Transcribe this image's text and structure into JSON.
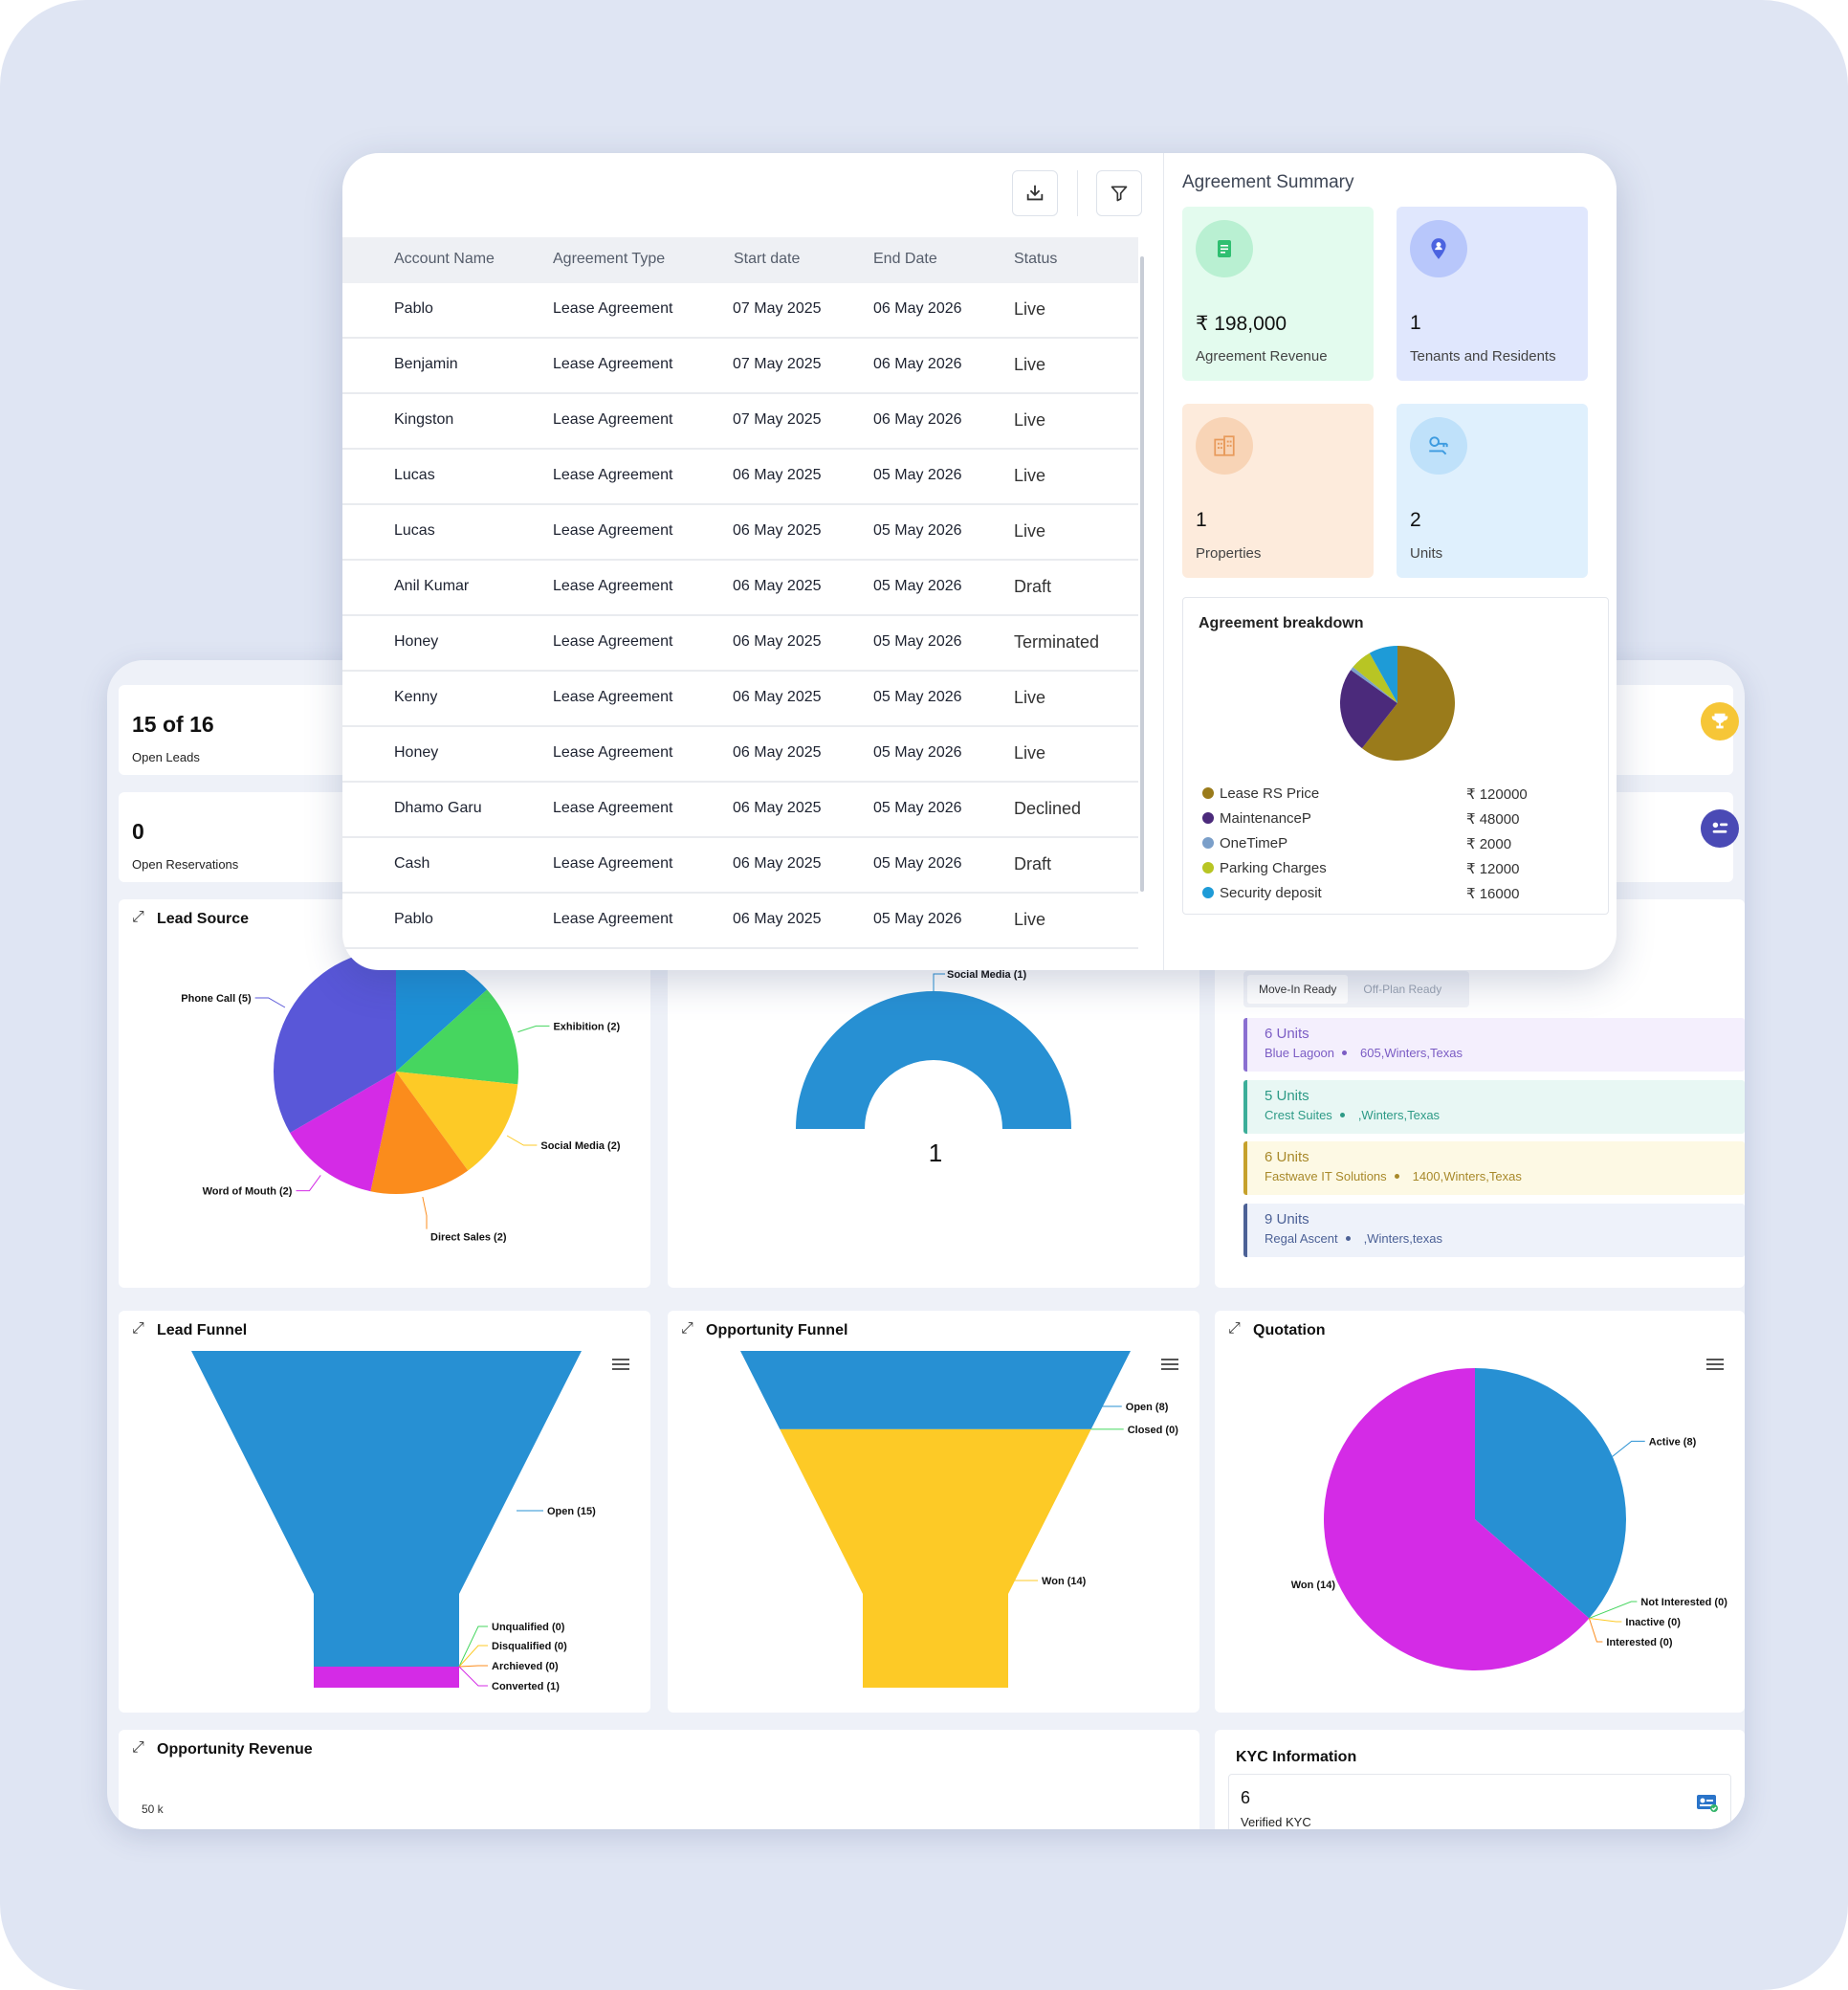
{
  "table": {
    "headers": [
      "Account Name",
      "Agreement Type",
      "Start date",
      "End Date",
      "Status"
    ],
    "rows": [
      [
        "Pablo",
        "Lease Agreement",
        "07 May 2025",
        "06 May 2026",
        "Live"
      ],
      [
        "Benjamin",
        "Lease Agreement",
        "07 May 2025",
        "06 May 2026",
        "Live"
      ],
      [
        "Kingston",
        "Lease Agreement",
        "07 May 2025",
        "06 May 2026",
        "Live"
      ],
      [
        "Lucas",
        "Lease Agreement",
        "06 May 2025",
        "05 May 2026",
        "Live"
      ],
      [
        "Lucas",
        "Lease Agreement",
        "06 May 2025",
        "05 May 2026",
        "Live"
      ],
      [
        "Anil Kumar",
        "Lease Agreement",
        "06 May 2025",
        "05 May 2026",
        "Draft"
      ],
      [
        "Honey",
        "Lease Agreement",
        "06 May 2025",
        "05 May 2026",
        "Terminated"
      ],
      [
        "Kenny",
        "Lease Agreement",
        "06 May 2025",
        "05 May 2026",
        "Live"
      ],
      [
        "Honey",
        "Lease Agreement",
        "06 May 2025",
        "05 May 2026",
        "Live"
      ],
      [
        "Dhamo Garu",
        "Lease Agreement",
        "06 May 2025",
        "05 May 2026",
        "Declined"
      ],
      [
        "Cash",
        "Lease Agreement",
        "06 May 2025",
        "05 May 2026",
        "Draft"
      ],
      [
        "Pablo",
        "Lease Agreement",
        "06 May 2025",
        "05 May 2026",
        "Live"
      ]
    ]
  },
  "toolbar": {
    "download_icon": "download-icon",
    "filter_icon": "filter-icon"
  },
  "summary": {
    "title": "Agreement Summary",
    "cards": [
      {
        "value": "₹ 198,000",
        "label": "Agreement Revenue",
        "bg": "#e3fbee",
        "icon_bg": "#b9f0d2",
        "icon_color": "#2fbf71",
        "icon": "document-icon"
      },
      {
        "value": "1",
        "label": "Tenants and Residents",
        "bg": "#e0e7fd",
        "icon_bg": "#b8c7fb",
        "icon_color": "#4b63e0",
        "icon": "user-pin-icon"
      },
      {
        "value": "1",
        "label": "Properties",
        "bg": "#fdebdc",
        "icon_bg": "#f8d4b6",
        "icon_color": "#e89a5b",
        "icon": "building-icon"
      },
      {
        "value": "2",
        "label": "Units",
        "bg": "#dff0fd",
        "icon_bg": "#bfe1fa",
        "icon_color": "#3d9be0",
        "icon": "key-icon"
      }
    ],
    "breakdown": {
      "title": "Agreement breakdown",
      "items": [
        {
          "name": "Lease RS Price",
          "value": "₹ 120000",
          "color": "#9a7b1b"
        },
        {
          "name": "MaintenanceP",
          "value": "₹ 48000",
          "color": "#4b2a7b"
        },
        {
          "name": "OneTimeP",
          "value": "₹ 2000",
          "color": "#7b9fc9"
        },
        {
          "name": "Parking Charges",
          "value": "₹ 12000",
          "color": "#b8c524"
        },
        {
          "name": "Security deposit",
          "value": "₹ 16000",
          "color": "#1e9bd7"
        }
      ]
    }
  },
  "stats": {
    "open_leads": {
      "value": "15 of 16",
      "label": "Open Leads"
    },
    "open_reservations": {
      "value": "0",
      "label": "Open Reservations"
    }
  },
  "lead_source": {
    "title": "Lead Source",
    "chart_data": {
      "type": "pie",
      "slices": [
        {
          "label": "Social Media (2)",
          "value": 2,
          "color": "#1e90d6"
        },
        {
          "label": "Exhibition (2)",
          "value": 2,
          "color": "#46d65f"
        },
        {
          "label": "Social Media (2)",
          "value": 2,
          "color": "#fdca26"
        },
        {
          "label": "Direct Sales (2)",
          "value": 2,
          "color": "#fb8c1c"
        },
        {
          "label": "Word of Mouth (2)",
          "value": 2,
          "color": "#d42be6"
        },
        {
          "label": "Phone Call (5)",
          "value": 5,
          "color": "#5957d8"
        }
      ]
    }
  },
  "source_gauge": {
    "chart_data": {
      "type": "pie",
      "slices": [
        {
          "label": "Social Media (1)",
          "value": 1,
          "color": "#2790d3"
        }
      ],
      "center_value": "1"
    }
  },
  "properties": {
    "tabs": [
      "Move-In Ready",
      "Off-Plan Ready"
    ],
    "items": [
      {
        "units": "6 Units",
        "name": "Blue Lagoon",
        "address": "605,Winters,Texas",
        "bg": "#f4effd",
        "border": "#8a6fd1",
        "color": "#7b5cc4"
      },
      {
        "units": "5 Units",
        "name": "Crest Suites",
        "address": ",Winters,Texas",
        "bg": "#e8f7f4",
        "border": "#3cae99",
        "color": "#2d9a86"
      },
      {
        "units": "6 Units",
        "name": "Fastwave IT Solutions",
        "address": "1400,Winters,Texas",
        "bg": "#fdf9e4",
        "border": "#c6a12b",
        "color": "#a8892a"
      },
      {
        "units": "9 Units",
        "name": "Regal Ascent",
        "address": ",Winters,texas",
        "bg": "#eef2fa",
        "border": "#4c6196",
        "color": "#4c6196"
      }
    ]
  },
  "lead_funnel": {
    "title": "Lead Funnel",
    "chart_data": {
      "type": "funnel",
      "stages": [
        {
          "label": "Open (15)",
          "value": 15,
          "color": "#2790d3"
        },
        {
          "label": "Unqualified (0)",
          "value": 0,
          "color": "#46d65f"
        },
        {
          "label": "Disqualified (0)",
          "value": 0,
          "color": "#fdca26"
        },
        {
          "label": "Archieved (0)",
          "value": 0,
          "color": "#fb8c1c"
        },
        {
          "label": "Converted (1)",
          "value": 1,
          "color": "#d42be6"
        }
      ]
    }
  },
  "opportunity_funnel": {
    "title": "Opportunity Funnel",
    "chart_data": {
      "type": "funnel",
      "stages": [
        {
          "label": "Open (8)",
          "value": 8,
          "color": "#2790d3"
        },
        {
          "label": "Closed (0)",
          "value": 0,
          "color": "#46d65f"
        },
        {
          "label": "Won (14)",
          "value": 14,
          "color": "#fdca26"
        }
      ]
    }
  },
  "quotation": {
    "title": "Quotation",
    "chart_data": {
      "type": "pie",
      "slices": [
        {
          "label": "Active (8)",
          "value": 8,
          "color": "#2790d3"
        },
        {
          "label": "Not Interested (0)",
          "value": 0,
          "color": "#46d65f"
        },
        {
          "label": "Inactive (0)",
          "value": 0,
          "color": "#fdca26"
        },
        {
          "label": "Interested (0)",
          "value": 0,
          "color": "#fb8c1c"
        },
        {
          "label": "Won (14)",
          "value": 14,
          "color": "#d42be6"
        }
      ]
    }
  },
  "opportunity_revenue": {
    "title": "Opportunity Revenue",
    "y_tick": "50 k"
  },
  "kyc": {
    "title": "KYC Information",
    "value": "6",
    "label": "Verified KYC"
  },
  "colors": {
    "trophy": "#f6c637",
    "reservation_icon": "#4a4ab5"
  }
}
